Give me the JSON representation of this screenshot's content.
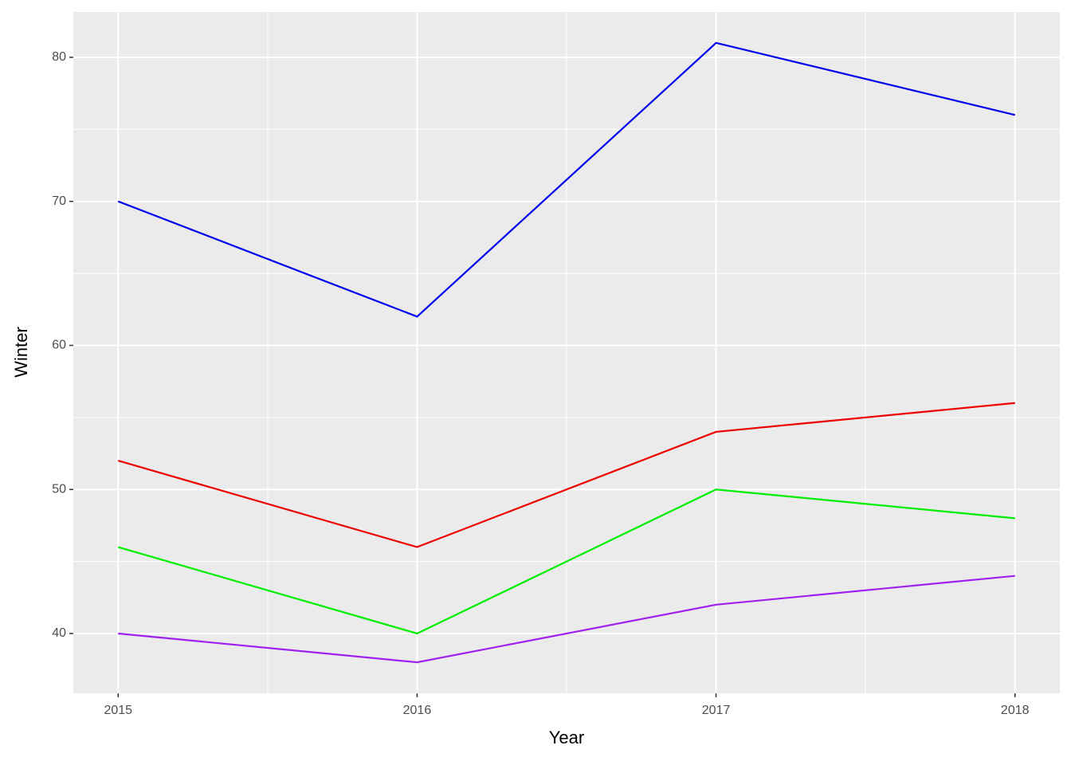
{
  "chart_data": {
    "type": "line",
    "x_label": "Year",
    "y_label": "Winter",
    "x": [
      2015,
      2016,
      2017,
      2018
    ],
    "series": [
      {
        "color": "#0000ee",
        "values": [
          70,
          62,
          81,
          76
        ]
      },
      {
        "color": "#ee0000",
        "values": [
          52,
          46,
          54,
          56
        ]
      },
      {
        "color": "#00ee00",
        "values": [
          46,
          40,
          50,
          48
        ]
      },
      {
        "color": "#a020f0",
        "values": [
          40,
          38,
          42,
          44
        ]
      }
    ],
    "xlim": [
      2014.85,
      2018.15
    ],
    "xticks": [
      2015,
      2016,
      2017,
      2018
    ],
    "ylim": [
      35.85,
      83.15
    ],
    "yticks": [
      40,
      50,
      60,
      70,
      80
    ],
    "grid": true,
    "minor_grid": true
  }
}
